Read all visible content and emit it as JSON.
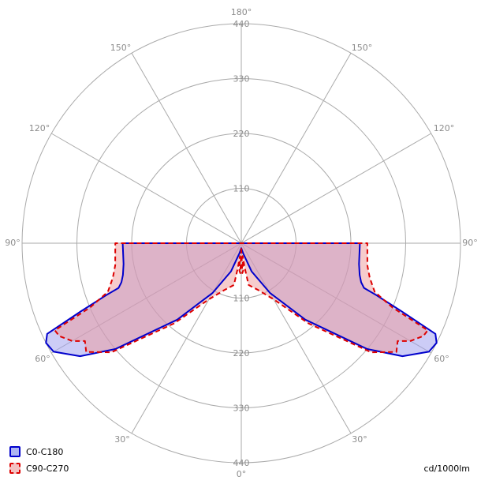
{
  "chart_data": {
    "type": "polar",
    "angle_labels": [
      "180°",
      "150°",
      "120°",
      "90°",
      "60°",
      "30°",
      "0°"
    ],
    "radial_ticks": [
      110,
      220,
      330,
      440
    ],
    "rmax": 440,
    "unit": "cd/1000lm",
    "series": [
      {
        "name": "C0-C180",
        "color": "#0000cc",
        "fill": "#9999ee",
        "dash": "none",
        "points": [
          [
            0,
            10
          ],
          [
            10,
            20
          ],
          [
            20,
            60
          ],
          [
            30,
            115
          ],
          [
            40,
            200
          ],
          [
            50,
            330
          ],
          [
            55,
            395
          ],
          [
            60,
            435
          ],
          [
            63,
            440
          ],
          [
            65,
            430
          ],
          [
            67,
            350
          ],
          [
            69,
            290
          ],
          [
            70,
            262
          ],
          [
            72,
            253
          ],
          [
            75,
            246
          ],
          [
            80,
            240
          ],
          [
            90,
            238
          ]
        ]
      },
      {
        "name": "C90-C270",
        "color": "#dd0000",
        "fill": "#ee9999",
        "dash": "6,4",
        "points": [
          [
            0,
            10
          ],
          [
            2,
            60
          ],
          [
            4,
            55
          ],
          [
            6,
            26
          ],
          [
            8,
            50
          ],
          [
            10,
            85
          ],
          [
            20,
            100
          ],
          [
            30,
            130
          ],
          [
            40,
            210
          ],
          [
            50,
            340
          ],
          [
            55,
            380
          ],
          [
            58,
            370
          ],
          [
            60,
            392
          ],
          [
            63,
            410
          ],
          [
            65,
            413
          ],
          [
            67,
            330
          ],
          [
            70,
            285
          ],
          [
            75,
            267
          ],
          [
            80,
            257
          ],
          [
            90,
            253
          ]
        ]
      }
    ]
  }
}
